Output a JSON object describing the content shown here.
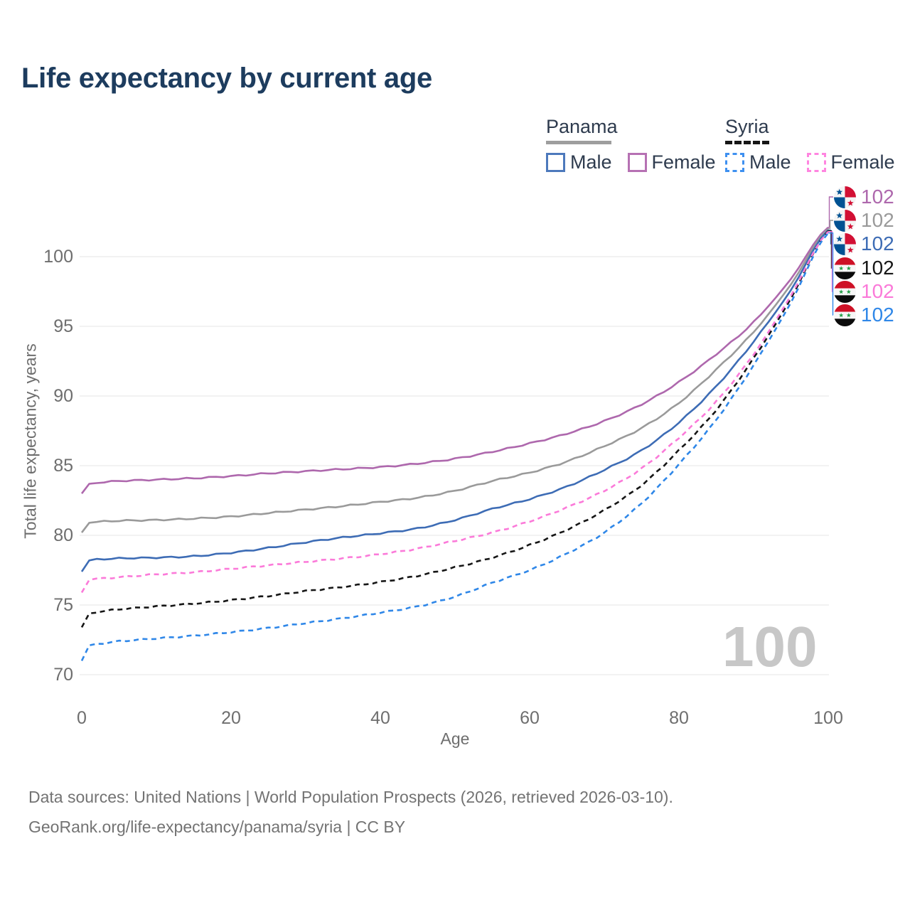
{
  "title": "Life expectancy by current age",
  "watermark_age": "100",
  "legend": {
    "groups": [
      {
        "country": "Panama",
        "dashed": false,
        "underline_color": "#9e9e9e",
        "items": [
          {
            "label": "Male",
            "color": "#4d79bc"
          },
          {
            "label": "Female",
            "color": "#b671b3"
          }
        ]
      },
      {
        "country": "Syria",
        "dashed": true,
        "underline_color": "#161616",
        "items": [
          {
            "label": "Male",
            "color": "#3e90f0"
          },
          {
            "label": "Female",
            "color": "#ff85e0"
          }
        ]
      }
    ]
  },
  "footer": {
    "line1": "Data sources: United Nations | World Population Prospects (2026, retrieved 2026-03-10).",
    "line2": "GeoRank.org/life-expectancy/panama/syria | CC BY"
  },
  "chart_data": {
    "type": "line",
    "title": "Life expectancy by current age",
    "xlabel": "Age",
    "ylabel": "Total life expectancy, years",
    "xlim": [
      0,
      100
    ],
    "ylim": [
      70,
      103
    ],
    "x_ticks": [
      0,
      20,
      40,
      60,
      80,
      100
    ],
    "y_ticks": [
      70,
      75,
      80,
      85,
      90,
      95,
      100
    ],
    "grid": "horizontal",
    "gridline_color": "#e4e4e4",
    "x": [
      0,
      1,
      2,
      5,
      10,
      15,
      20,
      25,
      30,
      35,
      40,
      45,
      50,
      55,
      60,
      65,
      70,
      75,
      80,
      85,
      90,
      95,
      100
    ],
    "series": [
      {
        "name": "Panama Female",
        "country": "Panama",
        "sex": "Female",
        "flag": "panama",
        "color": "#ae68ad",
        "dashed": false,
        "end_label": "102",
        "values": [
          83.0,
          83.7,
          83.78,
          83.9,
          84.0,
          84.1,
          84.25,
          84.45,
          84.6,
          84.75,
          84.9,
          85.15,
          85.5,
          86.0,
          86.6,
          87.3,
          88.2,
          89.4,
          91.0,
          93.0,
          95.3,
          98.4,
          102.1
        ]
      },
      {
        "name": "Panama Both sexes",
        "country": "Panama",
        "sex": "Both",
        "flag": "panama",
        "color": "#9a9a9a",
        "dashed": false,
        "end_label": "102",
        "values": [
          80.2,
          80.9,
          80.97,
          81.05,
          81.1,
          81.2,
          81.35,
          81.6,
          81.85,
          82.1,
          82.4,
          82.7,
          83.2,
          83.9,
          84.5,
          85.3,
          86.4,
          87.7,
          89.5,
          91.9,
          94.6,
          98.0,
          102.0
        ]
      },
      {
        "name": "Panama Male",
        "country": "Panama",
        "sex": "Male",
        "flag": "panama",
        "color": "#3d6cb5",
        "dashed": false,
        "end_label": "102",
        "values": [
          77.4,
          78.2,
          78.27,
          78.35,
          78.4,
          78.5,
          78.75,
          79.1,
          79.5,
          79.85,
          80.15,
          80.5,
          81.1,
          81.9,
          82.6,
          83.5,
          84.7,
          86.1,
          88.1,
          90.7,
          93.9,
          97.6,
          101.9
        ]
      },
      {
        "name": "Syria Both sexes",
        "country": "Syria",
        "sex": "Both",
        "flag": "syria",
        "color": "#161616",
        "dashed": true,
        "end_label": "102",
        "values": [
          73.4,
          74.4,
          74.5,
          74.7,
          74.9,
          75.1,
          75.35,
          75.65,
          76.0,
          76.3,
          76.65,
          77.1,
          77.7,
          78.4,
          79.3,
          80.4,
          81.8,
          83.6,
          86.1,
          89.0,
          92.7,
          97.0,
          101.85
        ]
      },
      {
        "name": "Syria Female",
        "country": "Syria",
        "sex": "Female",
        "flag": "syria",
        "color": "#fb7ad9",
        "dashed": true,
        "end_label": "102",
        "values": [
          75.9,
          76.8,
          76.88,
          77.0,
          77.2,
          77.35,
          77.6,
          77.85,
          78.1,
          78.35,
          78.65,
          79.05,
          79.6,
          80.2,
          81.0,
          82.0,
          83.2,
          84.8,
          87.0,
          89.6,
          93.0,
          97.2,
          101.8
        ]
      },
      {
        "name": "Syria Male",
        "country": "Syria",
        "sex": "Male",
        "flag": "syria",
        "color": "#2f87e8",
        "dashed": true,
        "end_label": "102",
        "values": [
          71.0,
          72.1,
          72.2,
          72.4,
          72.6,
          72.8,
          73.05,
          73.35,
          73.7,
          74.05,
          74.45,
          74.9,
          75.6,
          76.6,
          77.5,
          78.7,
          80.2,
          82.3,
          85.1,
          88.3,
          92.2,
          96.7,
          101.7
        ]
      }
    ],
    "end_label_rows_top_to_bottom": [
      "Panama Female",
      "Panama Both sexes",
      "Panama Male",
      "Syria Both sexes",
      "Syria Female",
      "Syria Male"
    ]
  }
}
